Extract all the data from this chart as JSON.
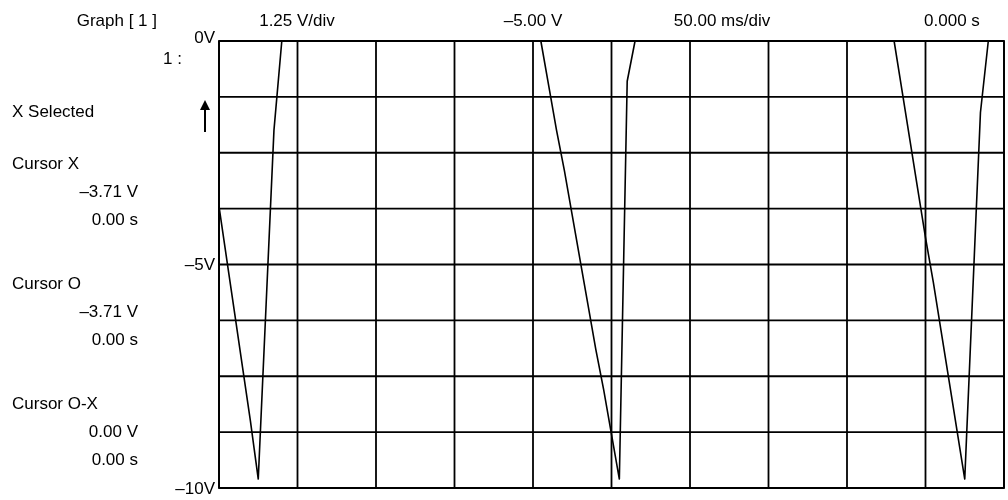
{
  "chart_data": {
    "type": "line",
    "title": "Graph [ 1 ]",
    "categories": [
      null,
      null,
      null,
      null,
      null,
      null,
      null,
      null,
      null,
      null,
      null,
      null,
      null,
      null,
      null,
      null,
      null,
      null,
      null,
      null,
      null,
      null,
      null,
      null,
      null,
      null,
      null,
      null,
      null,
      null,
      null,
      null,
      null,
      null,
      null,
      null,
      null,
      null,
      null,
      null,
      null,
      null,
      null,
      null,
      null,
      null,
      null,
      null,
      null,
      null,
      null,
      null,
      null,
      null,
      null,
      null,
      null,
      null,
      null,
      null,
      null,
      null,
      null,
      null,
      null,
      null,
      null,
      null,
      null,
      null,
      null,
      null,
      null,
      null,
      null,
      null,
      null,
      null,
      null,
      null,
      null,
      null,
      null,
      null,
      null,
      null,
      null,
      null,
      null,
      null,
      null,
      null,
      null,
      null,
      null,
      null,
      null,
      null,
      null,
      null,
      null
    ],
    "series": [
      {
        "color": "#000000",
        "values": [
          -3.7,
          -4.9,
          -6.1,
          -7.3,
          -8.5,
          -9.8,
          -5.9,
          -2.0,
          0,
          0,
          0,
          0,
          0,
          0,
          0,
          0,
          0,
          0,
          0,
          0,
          0,
          0,
          0,
          0,
          0,
          0,
          0,
          0,
          0,
          0,
          0,
          0,
          0,
          0,
          0,
          0,
          0,
          0,
          0,
          0,
          0,
          0,
          -1.0,
          -2.0,
          -2.9,
          -3.9,
          -4.9,
          -5.9,
          -6.9,
          -7.8,
          -8.8,
          -9.8,
          -0.9,
          0,
          0,
          0,
          0,
          0,
          0,
          0,
          0,
          0,
          0,
          0,
          0,
          0,
          0,
          0,
          0,
          0,
          0,
          0,
          0,
          0,
          0,
          0,
          0,
          0,
          0,
          0,
          0,
          0,
          0,
          0,
          0,
          0,
          0,
          -1.1,
          -2.2,
          -3.3,
          -4.4,
          -5.4,
          -6.5,
          -7.6,
          -8.7,
          -9.8,
          -5.7,
          -1.6,
          0,
          0,
          0
        ]
      }
    ],
    "ylim": [
      -10,
      0
    ],
    "yticks": [
      {
        "value": 0,
        "label": "0V"
      },
      {
        "value": -1.25,
        "label": null
      },
      {
        "value": -2.5,
        "label": null
      },
      {
        "value": -3.75,
        "label": null
      },
      {
        "value": -5,
        "label": "–5V"
      },
      {
        "value": -6.25,
        "label": null
      },
      {
        "value": -7.5,
        "label": null
      },
      {
        "value": -8.75,
        "label": null
      },
      {
        "value": -10,
        "label": "–10V"
      }
    ],
    "grid": true,
    "marker": "none",
    "line_style": "solid",
    "annotations": [
      "1.25 V/div",
      "–5.00 V",
      "50.00 ms/div",
      "0.000 s",
      "1 :",
      "X Selected",
      "Cursor X",
      "–3.71 V",
      "0.00 s",
      "Cursor O",
      "–3.71 V",
      "0.00 s",
      "Cursor O-X",
      "0.00 V",
      "0.00 s"
    ]
  }
}
